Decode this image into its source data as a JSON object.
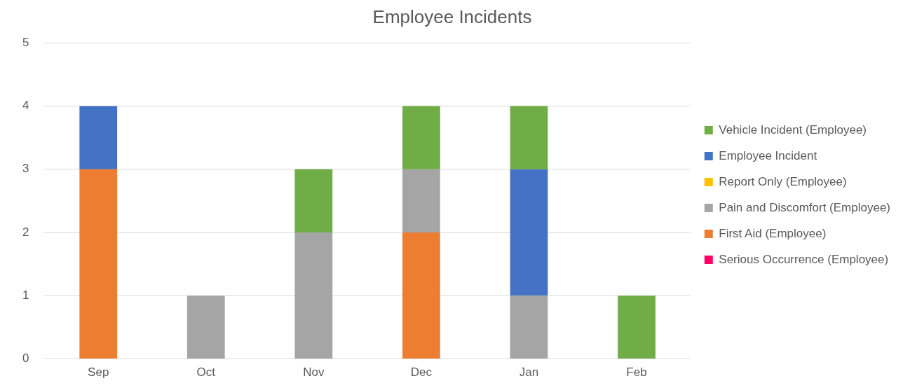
{
  "chart_data": {
    "type": "bar",
    "title": "Employee Incidents",
    "stacked": true,
    "categories": [
      "Sep",
      "Oct",
      "Nov",
      "Dec",
      "Jan",
      "Feb"
    ],
    "series": [
      {
        "name": "Serious Occurrence (Employee)",
        "color": "#ff0066",
        "values": [
          0,
          0,
          0,
          0,
          0,
          0
        ]
      },
      {
        "name": "First Aid (Employee)",
        "color": "#ed7d31",
        "values": [
          3,
          0,
          0,
          2,
          0,
          0
        ]
      },
      {
        "name": "Pain and Discomfort (Employee)",
        "color": "#a5a5a5",
        "values": [
          0,
          1,
          2,
          1,
          1,
          0
        ]
      },
      {
        "name": "Report Only (Employee)",
        "color": "#ffc000",
        "values": [
          0,
          0,
          0,
          0,
          0,
          0
        ]
      },
      {
        "name": "Employee Incident",
        "color": "#4472c4",
        "values": [
          1,
          0,
          0,
          0,
          2,
          0
        ]
      },
      {
        "name": "Vehicle Incident (Employee)",
        "color": "#70ad47",
        "values": [
          0,
          0,
          1,
          1,
          1,
          1
        ]
      }
    ],
    "ylim": [
      0,
      5
    ],
    "yticks": [
      0,
      1,
      2,
      3,
      4,
      5
    ],
    "grid": "y",
    "legend": "right"
  }
}
